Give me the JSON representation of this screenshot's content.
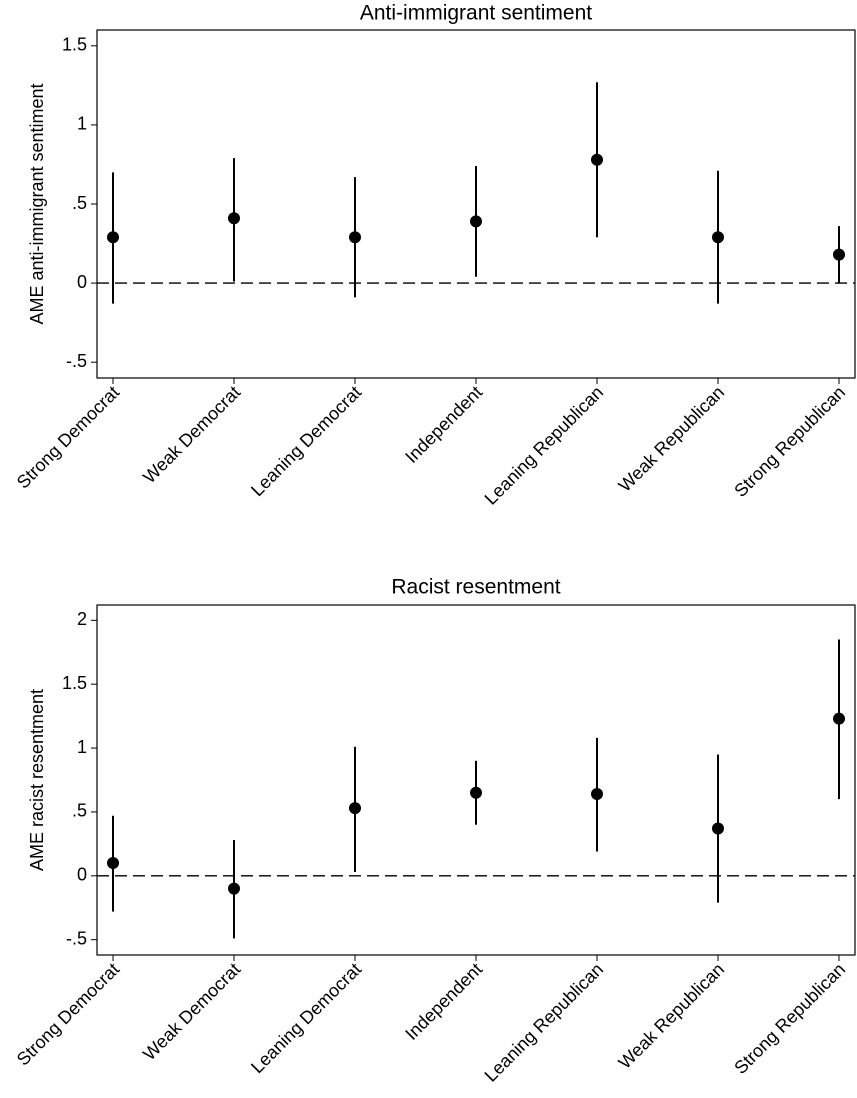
{
  "chart_data": [
    {
      "type": "errorbar",
      "title": "Anti-immigrant sentiment",
      "ylabel": "AME anti-immigrant sentiment",
      "categories": [
        "Strong Democrat",
        "Weak Democrat",
        "Leaning Democrat",
        "Independent",
        "Leaning Republican",
        "Weak Republican",
        "Strong Republican"
      ],
      "values": [
        0.29,
        0.41,
        0.29,
        0.39,
        0.78,
        0.29,
        0.18
      ],
      "lower": [
        -0.13,
        0.01,
        -0.09,
        0.04,
        0.29,
        -0.13,
        0.0
      ],
      "upper": [
        0.7,
        0.79,
        0.67,
        0.74,
        1.27,
        0.71,
        0.36
      ],
      "color": "#000000",
      "hline": 0,
      "ylim": [
        -0.6,
        1.6
      ],
      "yticks": [
        {
          "value": -0.5,
          "label": "-.5"
        },
        0,
        {
          "value": 0.5,
          "label": ".5"
        },
        1,
        1.5
      ]
    },
    {
      "type": "errorbar",
      "title": "Racist resentment",
      "ylabel": "AME racist resentment",
      "categories": [
        "Strong Democrat",
        "Weak Democrat",
        "Leaning Democrat",
        "Independent",
        "Leaning Republican",
        "Weak Republican",
        "Strong Republican"
      ],
      "values": [
        0.1,
        -0.1,
        0.53,
        0.65,
        0.64,
        0.37,
        1.23
      ],
      "lower": [
        -0.28,
        -0.49,
        0.03,
        0.4,
        0.19,
        -0.21,
        0.6
      ],
      "upper": [
        0.47,
        0.28,
        1.01,
        0.9,
        1.08,
        0.95,
        1.85
      ],
      "color": "#000000",
      "hline": 0,
      "ylim": [
        -0.62,
        2.12
      ],
      "yticks": [
        {
          "value": -0.5,
          "label": "-.5"
        },
        0,
        {
          "value": 0.5,
          "label": ".5"
        },
        1,
        1.5,
        2
      ]
    }
  ]
}
